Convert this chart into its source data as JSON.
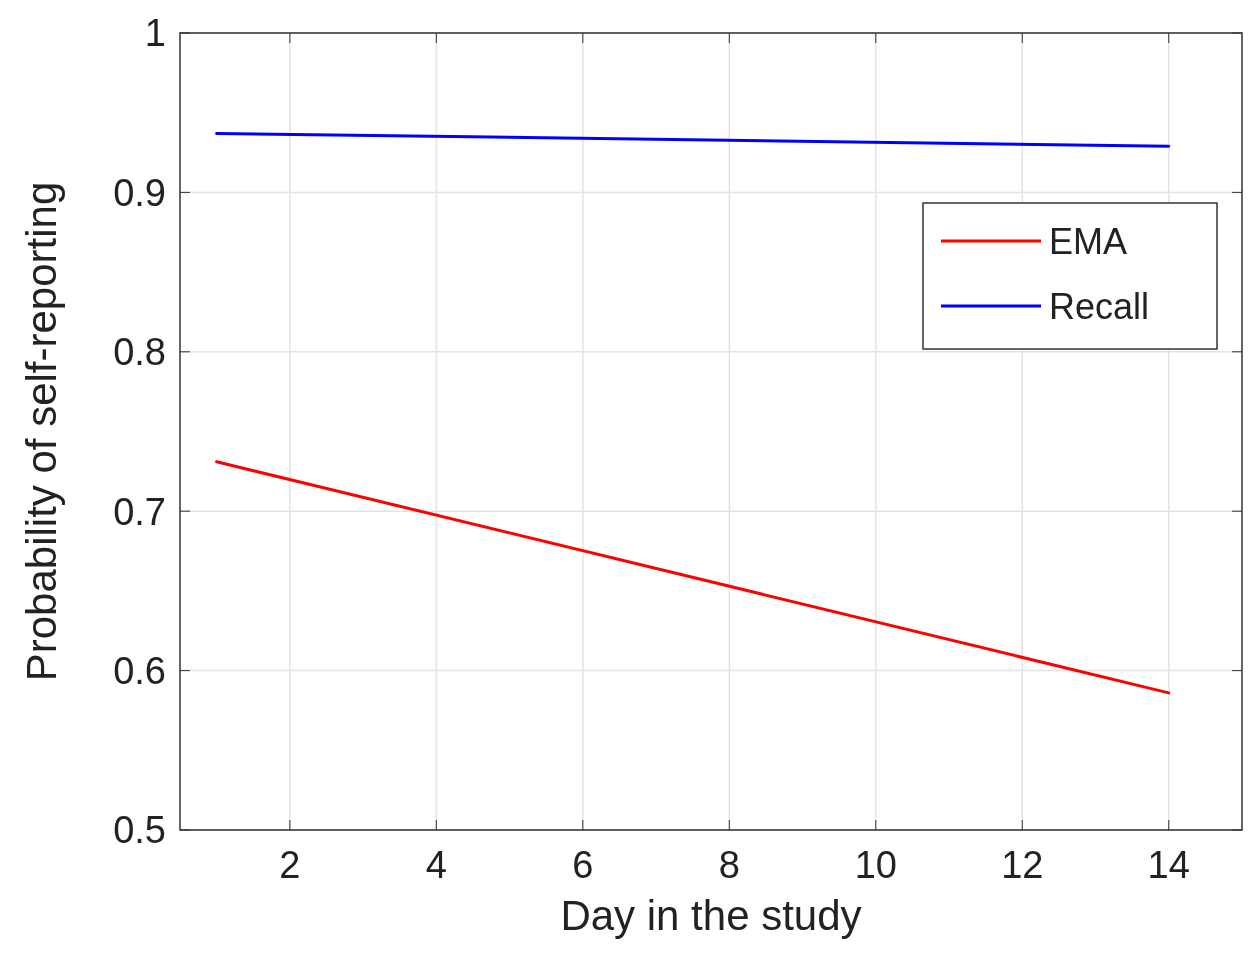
{
  "chart_data": {
    "type": "line",
    "xlabel": "Day in the study",
    "ylabel": "Probability of self-reporting",
    "xlim": [
      0.5,
      15
    ],
    "xticks": [
      2,
      4,
      6,
      8,
      10,
      12,
      14
    ],
    "ylim": [
      0.5,
      1
    ],
    "yticks": [
      0.5,
      0.6,
      0.7,
      0.8,
      0.9,
      1
    ],
    "grid": true,
    "legend": "top right",
    "marker": "none",
    "line_style": "solid",
    "x": [
      1,
      14
    ],
    "series": [
      {
        "name": "EMA",
        "color": "#ff0000",
        "values": [
          0.731,
          0.586
        ]
      },
      {
        "name": "Recall",
        "color": "#0000ff",
        "values": [
          0.937,
          0.929
        ]
      }
    ]
  }
}
